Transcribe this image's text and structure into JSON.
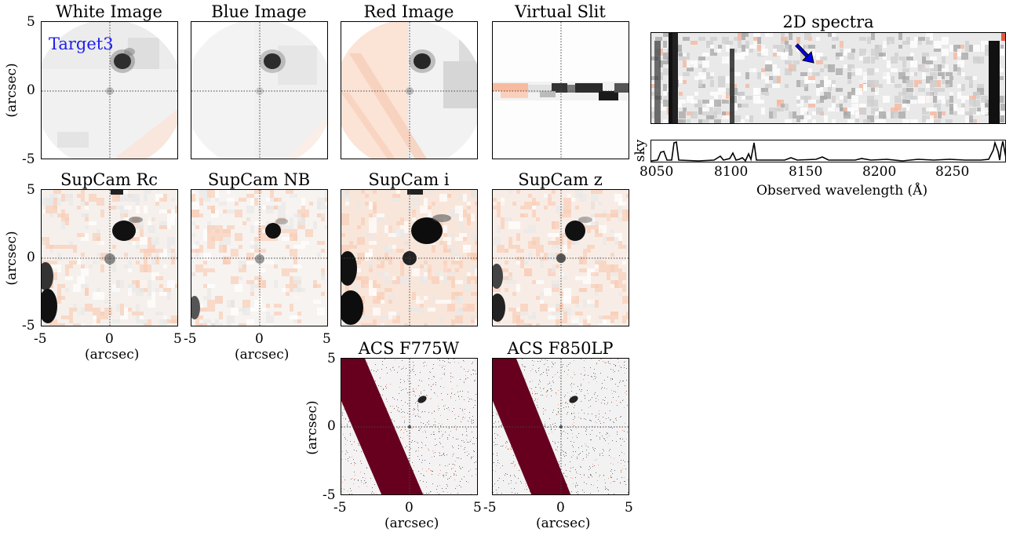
{
  "panels": {
    "white": {
      "title": "White Image"
    },
    "blue": {
      "title": "Blue Image"
    },
    "red": {
      "title": "Red Image"
    },
    "slit": {
      "title": "Virtual Slit"
    },
    "rc": {
      "title": "SupCam Rc"
    },
    "nb": {
      "title": "SupCam NB"
    },
    "i": {
      "title": "SupCam i"
    },
    "z": {
      "title": "SupCam z"
    },
    "f775": {
      "title": "ACS F775W"
    },
    "f850": {
      "title": "ACS F850LP"
    },
    "spec2d": {
      "title": "2D spectra"
    }
  },
  "target_label": "Target3",
  "axes": {
    "arcsec_label": "(arcsec)",
    "ticks_y": [
      "5",
      "0",
      "-5"
    ],
    "ticks_x": [
      "-5",
      "0",
      "5"
    ],
    "sky_label": "sky",
    "wavelength_label": "Observed wavelength (Å)",
    "wavelength_ticks": [
      "8050",
      "8100",
      "8150",
      "8200",
      "8250"
    ]
  },
  "colors": {
    "dark": "#111111",
    "orange": "#f4a582",
    "acs_band": "#67001f",
    "arrow": "#0000ee"
  }
}
